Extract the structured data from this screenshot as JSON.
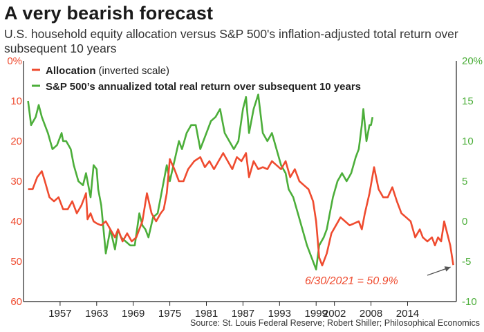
{
  "title": "A very bearish forecast",
  "subtitle": "U.S. household equity allocation versus S&P 500's inflation-adjusted total return over subsequent 10 years",
  "source": "Source: St. Louis Federal Reserve; Robert Shiller; Philosophical Economics",
  "colors": {
    "allocation": "#ef4b2f",
    "return": "#4cae3a",
    "axis_left": "#ef4b2f",
    "axis_right": "#4cae3a",
    "text": "#222222"
  },
  "legend": {
    "allocation_label": "Allocation",
    "allocation_note": "(inverted scale)",
    "return_label": "S&P 500’s annualized total real return over subsequent 10 years"
  },
  "annotation": {
    "text": "6/30/2021 = 50.9%"
  },
  "chart_data": {
    "type": "line",
    "xlim": [
      1951,
      2022
    ],
    "x_ticks": [
      1957,
      1963,
      1969,
      1975,
      1981,
      1987,
      1993,
      1999,
      2002,
      2008,
      2014
    ],
    "x_tick_labels": [
      "1957",
      "1963",
      "1969",
      "1975",
      "1981",
      "1987",
      "1993",
      "1999",
      "2002",
      "2008",
      "2014"
    ],
    "y_left": {
      "lim": [
        0,
        60
      ],
      "inverted": true,
      "ticks": [
        0,
        10,
        20,
        30,
        40,
        50,
        60
      ],
      "tick_labels": [
        "0%",
        "10",
        "20",
        "30",
        "40",
        "50",
        "60"
      ]
    },
    "y_right": {
      "lim": [
        -10,
        20
      ],
      "ticks": [
        20,
        15,
        10,
        5,
        0,
        -5,
        -10
      ],
      "tick_labels": [
        "20%",
        "15",
        "10",
        "5",
        "0",
        "-5",
        "-10"
      ]
    },
    "grid": false,
    "legend_position": "top-left",
    "series": [
      {
        "name": "Allocation (inverted scale)",
        "axis": "left",
        "x": [
          1951.75,
          1952.5,
          1953.25,
          1954,
          1954.5,
          1955.25,
          1956,
          1956.75,
          1957.5,
          1958.25,
          1959,
          1959.75,
          1960.5,
          1961.25,
          1961.5,
          1962,
          1962.5,
          1963,
          1963.75,
          1964.5,
          1965.25,
          1966,
          1966.5,
          1967.25,
          1968,
          1968.75,
          1969.5,
          1970,
          1970.5,
          1971.25,
          1972,
          1972.75,
          1973.5,
          1974,
          1974.5,
          1975,
          1975.75,
          1976.5,
          1977.25,
          1978,
          1979,
          1980,
          1980.75,
          1981.5,
          1982.25,
          1983,
          1983.75,
          1984.5,
          1985.25,
          1986,
          1986.75,
          1987.5,
          1988,
          1988.75,
          1989.5,
          1990.25,
          1991,
          1991.75,
          1992.5,
          1993.25,
          1994,
          1994.75,
          1995.5,
          1996.25,
          1997,
          1997.75,
          1998.5,
          1999,
          1999.5,
          2000,
          2000.75,
          2001.5,
          2002.25,
          2003,
          2003.75,
          2004.5,
          2005.25,
          2006,
          2006.5,
          2007,
          2007.75,
          2008.5,
          2009.25,
          2010,
          2010.75,
          2011.5,
          2012.25,
          2013,
          2013.75,
          2014.5,
          2015.25,
          2016,
          2016.5,
          2017.25,
          2018,
          2018.5,
          2019,
          2019.5,
          2020,
          2020.5,
          2021,
          2021.5
        ],
        "values": [
          32,
          32,
          29,
          27.5,
          30,
          34,
          35,
          34,
          37,
          37,
          35,
          38,
          36,
          33,
          39.5,
          38,
          40,
          40.5,
          41,
          40,
          42,
          44,
          42,
          45,
          43,
          45,
          44,
          42,
          40,
          33,
          38,
          40,
          38,
          37,
          33,
          24.5,
          27,
          30,
          30,
          27,
          25,
          24,
          26.5,
          25,
          27,
          25,
          23,
          25,
          27,
          24,
          25,
          23,
          29,
          25,
          27,
          26.5,
          27,
          25,
          26,
          27,
          25,
          29,
          27,
          30,
          31,
          32,
          35,
          40,
          49,
          51,
          48,
          43,
          41,
          39,
          40,
          41,
          40.5,
          40,
          42,
          38,
          33,
          26.5,
          32,
          34,
          34,
          31.5,
          35,
          38,
          39,
          40,
          44,
          42,
          44,
          45,
          44,
          46,
          44,
          45,
          40,
          43,
          46,
          50.9
        ]
      },
      {
        "name": "S&P 500’s annualized total real return over subsequent 10 years",
        "axis": "right",
        "x": [
          1951.75,
          1952.25,
          1953,
          1953.5,
          1954,
          1955,
          1955.75,
          1956.5,
          1957.25,
          1957.5,
          1958,
          1958.75,
          1959.25,
          1960,
          1960.75,
          1961.25,
          1962,
          1962.5,
          1963,
          1963.25,
          1963.75,
          1964.5,
          1965.25,
          1966,
          1966.5,
          1967,
          1967.75,
          1968.5,
          1969.25,
          1970,
          1970.5,
          1971,
          1971.5,
          1972.25,
          1973,
          1973.5,
          1974,
          1974.5,
          1975,
          1975.75,
          1976.5,
          1977,
          1977.75,
          1978.5,
          1979.25,
          1980,
          1980.5,
          1981,
          1981.75,
          1982.5,
          1983.25,
          1984,
          1984.75,
          1985.5,
          1986.25,
          1987,
          1987.5,
          1988,
          1988.75,
          1989.5,
          1990.25,
          1991,
          1991.75,
          1992.5,
          1993.25,
          1994,
          1994.5,
          1995.25,
          1996,
          1996.75,
          1997.5,
          1998.25,
          1999,
          1999.5,
          2000.25,
          2000.75,
          2001.25,
          2001.75,
          2002.5,
          2003.25,
          2004,
          2004.75,
          2005.5,
          2006,
          2006.5,
          2006.75,
          2007.25,
          2007.75,
          2008,
          2008.25
        ],
        "values": [
          15,
          12,
          13,
          14.5,
          13,
          11,
          9,
          9.5,
          11,
          10,
          10,
          9,
          7,
          5,
          4.5,
          6,
          3,
          7,
          6.5,
          4,
          2,
          -4,
          -1,
          -3.5,
          -1,
          -2,
          -2.5,
          -3,
          -3,
          1,
          -0.5,
          -1,
          -2,
          0.5,
          1,
          3,
          5,
          7,
          5,
          7.5,
          10,
          9,
          11,
          12,
          12,
          9,
          10,
          11,
          12.5,
          13,
          14,
          11,
          10,
          9,
          10,
          14,
          15.5,
          11,
          14,
          15.8,
          11,
          10,
          11,
          9,
          7,
          6,
          4,
          3,
          1,
          -1,
          -3,
          -4.5,
          -6,
          -3,
          -2,
          -1,
          1,
          3,
          5,
          6,
          5,
          6,
          8,
          9,
          12,
          14,
          10,
          12,
          12,
          13
        ]
      }
    ]
  }
}
